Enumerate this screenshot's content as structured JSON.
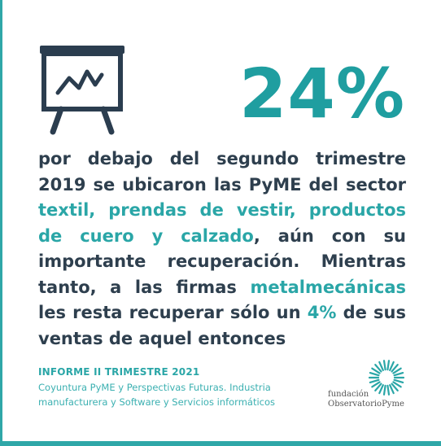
{
  "headline": {
    "big_number": "24%"
  },
  "body": {
    "t1": "por debajo del segundo trimestre 2019 se ubicaron las PyME del sector ",
    "h1": "textil, prendas de vestir, productos de cuero y calzado",
    "t2": ", aún con su importante recuperación. Mientras tanto, a las firmas ",
    "h2": "metalmecánicas",
    "t3": " les resta recuperar sólo un ",
    "h3": "4%",
    "t4": " de sus ventas de aquel entonces"
  },
  "report": {
    "title": "INFORME II TRIMESTRE 2021",
    "description": "Coyuntura PyME y Perspectivas Futuras. Industria manufacturera y Software y Servicios informáticos"
  },
  "logo": {
    "line1": "fundación",
    "line2": "ObservatorioPyme"
  },
  "icons": {
    "chart": "presentation-chart-icon",
    "logo": "sunburst-logo-icon"
  },
  "colors": {
    "accent": "#2aa6a7",
    "text": "#2e3f4e",
    "icon": "#2b3d4f"
  }
}
